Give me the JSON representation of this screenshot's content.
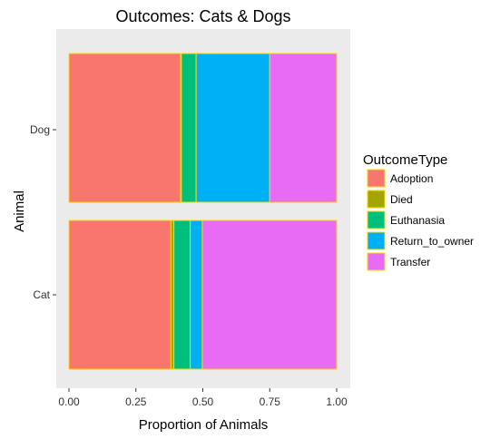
{
  "chart_data": {
    "type": "bar",
    "orientation": "horizontal",
    "stacked": true,
    "title": "Outcomes: Cats & Dogs",
    "xlabel": "Proportion of Animals",
    "ylabel": "Animal",
    "xlim": [
      0,
      1
    ],
    "xticks": [
      "0.00",
      "0.25",
      "0.50",
      "0.75",
      "1.00"
    ],
    "categories": [
      "Dog",
      "Cat"
    ],
    "bar_border_color": "#FFD700",
    "panel_background": "#EBEBEB",
    "grid": false,
    "legend": {
      "title": "OutcomeType",
      "position": "right"
    },
    "series": [
      {
        "name": "Adoption",
        "color": "#F8766D",
        "values": [
          0.417,
          0.381
        ]
      },
      {
        "name": "Died",
        "color": "#A3A500",
        "values": [
          0.003,
          0.011
        ]
      },
      {
        "name": "Euthanasia",
        "color": "#00BF7D",
        "values": [
          0.055,
          0.061
        ]
      },
      {
        "name": "Return_to_owner",
        "color": "#00B0F6",
        "values": [
          0.275,
          0.045
        ]
      },
      {
        "name": "Transfer",
        "color": "#E76BF3",
        "values": [
          0.25,
          0.502
        ]
      }
    ]
  }
}
